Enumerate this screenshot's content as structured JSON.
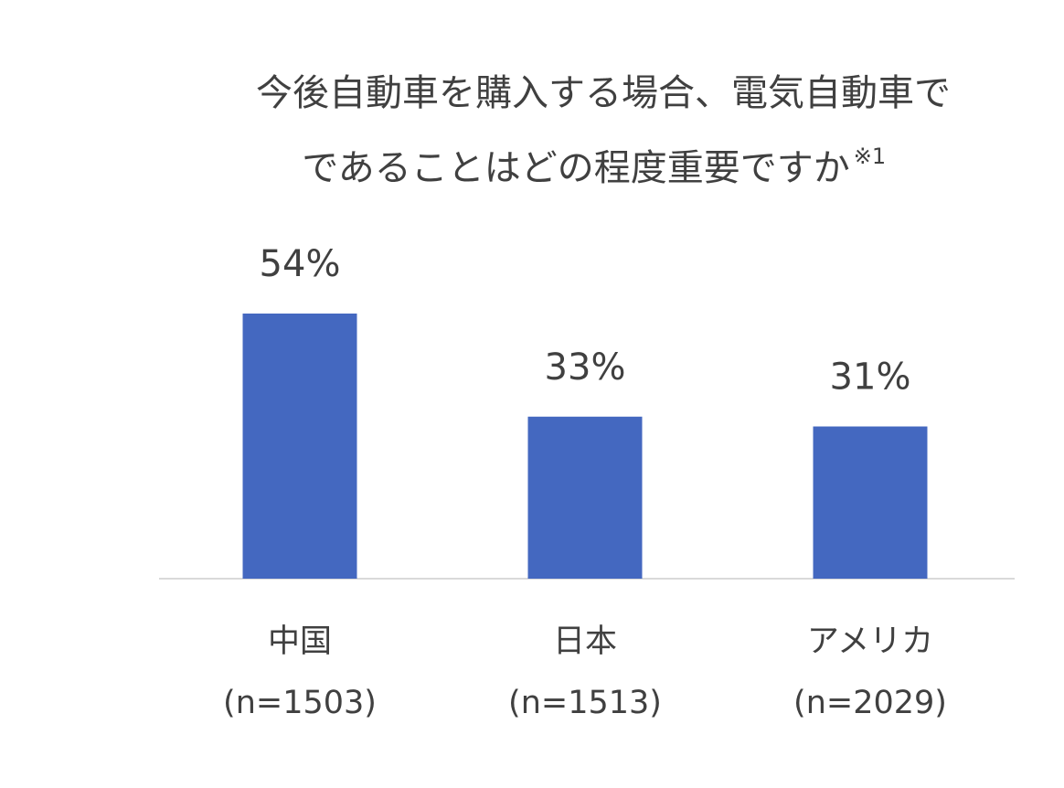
{
  "chart_data": {
    "type": "bar",
    "title": [
      "今後自動車を購入する場合、電気自動車で",
      "であることはどの程度重要ですか"
    ],
    "title_note": "※1",
    "categories": [
      [
        "中国",
        "(n=1503)"
      ],
      [
        "日本",
        "(n=1513)"
      ],
      [
        "アメリカ",
        "(n=2029)"
      ]
    ],
    "values": [
      54,
      33,
      31
    ],
    "value_labels": [
      "54%",
      "33%",
      "31%"
    ],
    "color": "#4468c0"
  }
}
